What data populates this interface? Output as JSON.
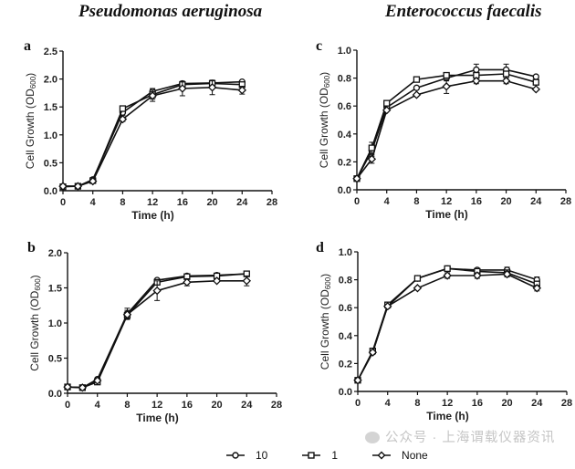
{
  "column_titles": [
    "Pseudomonas aeruginosa",
    "Enterococcus faecalis"
  ],
  "legend": [
    {
      "label": "10",
      "marker": "circle"
    },
    {
      "label": "1",
      "marker": "square"
    },
    {
      "label": "None",
      "marker": "diamond"
    }
  ],
  "watermark": "公众号 · 上海谓载仪器资讯",
  "colors": {
    "line": "#111111",
    "axis": "#111111"
  },
  "chart_data": [
    {
      "panel": "a",
      "type": "line",
      "organism": "Pseudomonas aeruginosa",
      "xlabel": "Time (h)",
      "ylabel": "Cell Growth (OD600)",
      "ylabel_main": "Cell Growth (OD",
      "ylabel_sub": "600",
      "ylabel_end": ")",
      "xlim": [
        0,
        28
      ],
      "ylim": [
        0,
        2.5
      ],
      "xticks": [
        "0",
        "4",
        "8",
        "12",
        "16",
        "20",
        "24",
        "28"
      ],
      "yticks": [
        "0.0",
        "0.5",
        "1.0",
        "1.5",
        "2.0",
        "2.5"
      ],
      "x": [
        0,
        2,
        4,
        8,
        12,
        16,
        20,
        24
      ],
      "series": [
        {
          "name": "10",
          "marker": "circle",
          "values": [
            0.08,
            0.08,
            0.2,
            1.4,
            1.78,
            1.92,
            1.93,
            1.95
          ],
          "err": [
            0.01,
            0.01,
            0.02,
            0.05,
            0.05,
            0.03,
            0.04,
            0.03
          ]
        },
        {
          "name": "1",
          "marker": "square",
          "values": [
            0.07,
            0.08,
            0.18,
            1.47,
            1.72,
            1.9,
            1.92,
            1.9
          ],
          "err": [
            0.01,
            0.01,
            0.02,
            0.04,
            0.08,
            0.04,
            0.05,
            0.04
          ]
        },
        {
          "name": "None",
          "marker": "diamond",
          "values": [
            0.08,
            0.08,
            0.17,
            1.28,
            1.7,
            1.83,
            1.85,
            1.8
          ],
          "err": [
            0.01,
            0.01,
            0.02,
            0.04,
            0.1,
            0.13,
            0.13,
            0.07
          ]
        }
      ]
    },
    {
      "panel": "b",
      "type": "line",
      "organism": "Pseudomonas aeruginosa",
      "xlabel": "Time (h)",
      "ylabel": "Cell Growth (OD600)",
      "ylabel_main": "Cell Growth (OD",
      "ylabel_sub": "600",
      "ylabel_end": ")",
      "xlim": [
        0,
        28
      ],
      "ylim": [
        0,
        2.0
      ],
      "xticks": [
        "0",
        "4",
        "8",
        "12",
        "16",
        "20",
        "24",
        "28"
      ],
      "yticks": [
        "0.0",
        "0.5",
        "1.0",
        "1.5",
        "2.0"
      ],
      "x": [
        0,
        2,
        4,
        8,
        12,
        16,
        20,
        24
      ],
      "series": [
        {
          "name": "10",
          "marker": "circle",
          "values": [
            0.09,
            0.08,
            0.2,
            1.13,
            1.61,
            1.67,
            1.68,
            1.7
          ],
          "err": [
            0.01,
            0.01,
            0.02,
            0.08,
            0.03,
            0.02,
            0.02,
            0.02
          ]
        },
        {
          "name": "1",
          "marker": "square",
          "values": [
            0.09,
            0.08,
            0.16,
            1.11,
            1.58,
            1.66,
            1.67,
            1.7
          ],
          "err": [
            0.01,
            0.01,
            0.02,
            0.05,
            0.03,
            0.02,
            0.02,
            0.02
          ]
        },
        {
          "name": "None",
          "marker": "diamond",
          "values": [
            0.09,
            0.08,
            0.18,
            1.12,
            1.46,
            1.58,
            1.6,
            1.6
          ],
          "err": [
            0.01,
            0.01,
            0.02,
            0.06,
            0.14,
            0.05,
            0.03,
            0.07
          ]
        }
      ]
    },
    {
      "panel": "c",
      "type": "line",
      "organism": "Enterococcus faecalis",
      "xlabel": "Time (h)",
      "ylabel": "Cell Growth (OD600)",
      "ylabel_main": "Cell Growth (OD",
      "ylabel_sub": "600",
      "ylabel_end": ")",
      "xlim": [
        0,
        28
      ],
      "ylim": [
        0,
        1.0
      ],
      "xticks": [
        "0",
        "4",
        "8",
        "12",
        "16",
        "20",
        "24",
        "28"
      ],
      "yticks": [
        "0.0",
        "0.2",
        "0.4",
        "0.6",
        "0.8",
        "1.0"
      ],
      "x": [
        0,
        2,
        4,
        8,
        12,
        16,
        20,
        24
      ],
      "series": [
        {
          "name": "10",
          "marker": "circle",
          "values": [
            0.08,
            0.28,
            0.59,
            0.73,
            0.8,
            0.86,
            0.86,
            0.81
          ],
          "err": [
            0.01,
            0.04,
            0.02,
            0.01,
            0.02,
            0.04,
            0.04,
            0.01
          ]
        },
        {
          "name": "1",
          "marker": "square",
          "values": [
            0.08,
            0.3,
            0.62,
            0.79,
            0.82,
            0.82,
            0.83,
            0.77
          ],
          "err": [
            0.01,
            0.04,
            0.01,
            0.01,
            0.01,
            0.02,
            0.02,
            0.01
          ]
        },
        {
          "name": "None",
          "marker": "diamond",
          "values": [
            0.08,
            0.22,
            0.57,
            0.68,
            0.74,
            0.78,
            0.78,
            0.72
          ],
          "err": [
            0.01,
            0.03,
            0.01,
            0.01,
            0.05,
            0.02,
            0.02,
            0.01
          ]
        }
      ]
    },
    {
      "panel": "d",
      "type": "line",
      "organism": "Enterococcus faecalis",
      "xlabel": "Time (h)",
      "ylabel": "Cell Growth (OD600)",
      "ylabel_main": "Cell Growth (OD",
      "ylabel_sub": "600",
      "ylabel_end": ")",
      "xlim": [
        0,
        28
      ],
      "ylim": [
        0,
        1.0
      ],
      "xticks": [
        "0",
        "4",
        "8",
        "12",
        "16",
        "20",
        "24",
        "28"
      ],
      "yticks": [
        "0.0",
        "0.2",
        "0.4",
        "0.6",
        "0.8",
        "1.0"
      ],
      "x": [
        0,
        2,
        4,
        8,
        12,
        16,
        20,
        24
      ],
      "series": [
        {
          "name": "10",
          "marker": "circle",
          "values": [
            0.08,
            0.28,
            0.61,
            0.81,
            0.88,
            0.87,
            0.87,
            0.8
          ],
          "err": [
            0.01,
            0.01,
            0.01,
            0.01,
            0.01,
            0.01,
            0.02,
            0.02
          ]
        },
        {
          "name": "1",
          "marker": "square",
          "values": [
            0.08,
            0.29,
            0.62,
            0.81,
            0.88,
            0.86,
            0.85,
            0.77
          ],
          "err": [
            0.01,
            0.01,
            0.01,
            0.01,
            0.01,
            0.01,
            0.02,
            0.02
          ]
        },
        {
          "name": "None",
          "marker": "diamond",
          "values": [
            0.08,
            0.28,
            0.61,
            0.74,
            0.83,
            0.83,
            0.84,
            0.74
          ],
          "err": [
            0.01,
            0.01,
            0.01,
            0.01,
            0.02,
            0.02,
            0.02,
            0.02
          ]
        }
      ]
    }
  ]
}
